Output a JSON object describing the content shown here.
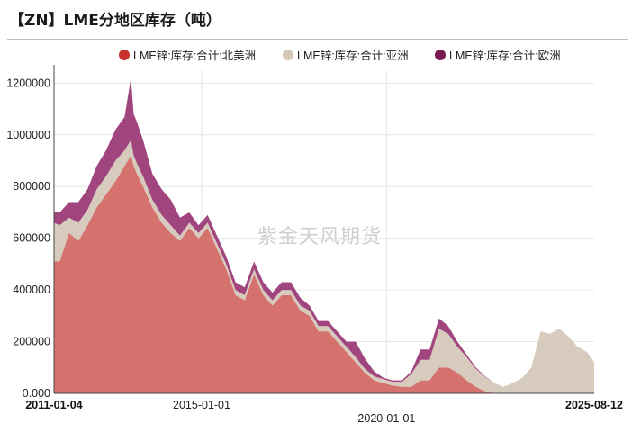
{
  "title": "【ZN】LME分地区库存（吨）",
  "watermark": "紫金天风期货",
  "chart_data": {
    "type": "area",
    "stacked": true,
    "title": "【ZN】LME分地区库存（吨）",
    "xlabel": "",
    "ylabel": "",
    "ylim": [
      0,
      1250000
    ],
    "y_ticks": [
      "0.000",
      "200000",
      "400000",
      "600000",
      "800000",
      "1000000",
      "1200000"
    ],
    "x_ticks": [
      "2011-01-04",
      "2015-01-01",
      "2020-01-01",
      "2025-08-12"
    ],
    "x_range": [
      "2011-01-04",
      "2025-08-12"
    ],
    "grid": true,
    "legend_position": "top",
    "x": [
      "2011-01-04",
      "2011-03-01",
      "2011-06-01",
      "2011-09-01",
      "2011-12-01",
      "2012-03-01",
      "2012-06-01",
      "2012-09-01",
      "2012-12-01",
      "2013-02-01",
      "2013-03-01",
      "2013-04-01",
      "2013-06-01",
      "2013-09-01",
      "2013-12-01",
      "2014-03-01",
      "2014-06-01",
      "2014-09-01",
      "2014-12-01",
      "2015-03-01",
      "2015-06-01",
      "2015-09-01",
      "2015-12-01",
      "2016-03-01",
      "2016-06-01",
      "2016-09-01",
      "2016-12-01",
      "2017-03-01",
      "2017-06-01",
      "2017-09-01",
      "2017-12-01",
      "2018-03-01",
      "2018-06-01",
      "2018-09-01",
      "2018-12-01",
      "2019-03-01",
      "2019-06-01",
      "2019-09-01",
      "2019-12-01",
      "2020-03-01",
      "2020-06-01",
      "2020-09-01",
      "2020-12-01",
      "2021-03-01",
      "2021-06-01",
      "2021-09-01",
      "2021-12-01",
      "2022-03-01",
      "2022-06-01",
      "2022-09-01",
      "2022-12-01",
      "2023-03-01",
      "2023-06-01",
      "2023-09-01",
      "2023-12-01",
      "2024-03-01",
      "2024-06-01",
      "2024-09-01",
      "2024-12-01",
      "2025-03-01",
      "2025-06-01",
      "2025-08-12"
    ],
    "series": [
      {
        "name": "LME锌:库存:合计:北美洲",
        "color": "#d46a66",
        "values": [
          510000,
          510000,
          620000,
          590000,
          650000,
          720000,
          770000,
          820000,
          880000,
          920000,
          880000,
          850000,
          800000,
          720000,
          660000,
          620000,
          590000,
          640000,
          600000,
          640000,
          560000,
          480000,
          380000,
          360000,
          460000,
          380000,
          340000,
          380000,
          380000,
          320000,
          300000,
          240000,
          240000,
          200000,
          160000,
          120000,
          80000,
          50000,
          40000,
          30000,
          25000,
          25000,
          50000,
          50000,
          100000,
          100000,
          80000,
          50000,
          25000,
          8000,
          0,
          0,
          0,
          0,
          0,
          0,
          0,
          0,
          0,
          0,
          0,
          0
        ]
      },
      {
        "name": "LME锌:库存:合计:亚洲",
        "color": "#d4c8b9",
        "values": [
          150000,
          140000,
          60000,
          70000,
          60000,
          70000,
          70000,
          80000,
          60000,
          60000,
          40000,
          40000,
          40000,
          30000,
          30000,
          30000,
          20000,
          20000,
          20000,
          20000,
          20000,
          20000,
          20000,
          20000,
          20000,
          20000,
          20000,
          20000,
          20000,
          20000,
          20000,
          20000,
          20000,
          20000,
          20000,
          20000,
          15000,
          15000,
          15000,
          15000,
          20000,
          50000,
          80000,
          80000,
          150000,
          130000,
          100000,
          90000,
          70000,
          55000,
          40000,
          25000,
          40000,
          60000,
          100000,
          240000,
          230000,
          250000,
          220000,
          180000,
          160000,
          120000
        ]
      },
      {
        "name": "LME锌:库存:合计:欧洲",
        "color": "#9c3b78",
        "values": [
          40000,
          50000,
          60000,
          80000,
          80000,
          90000,
          100000,
          120000,
          130000,
          240000,
          160000,
          160000,
          140000,
          100000,
          100000,
          100000,
          70000,
          40000,
          30000,
          30000,
          30000,
          30000,
          30000,
          30000,
          30000,
          30000,
          30000,
          30000,
          30000,
          30000,
          20000,
          20000,
          20000,
          20000,
          20000,
          60000,
          40000,
          20000,
          5000,
          5000,
          5000,
          10000,
          40000,
          40000,
          40000,
          30000,
          20000,
          10000,
          5000,
          2000,
          0,
          0,
          0,
          0,
          0,
          0,
          0,
          0,
          0,
          0,
          0,
          0
        ]
      }
    ]
  }
}
